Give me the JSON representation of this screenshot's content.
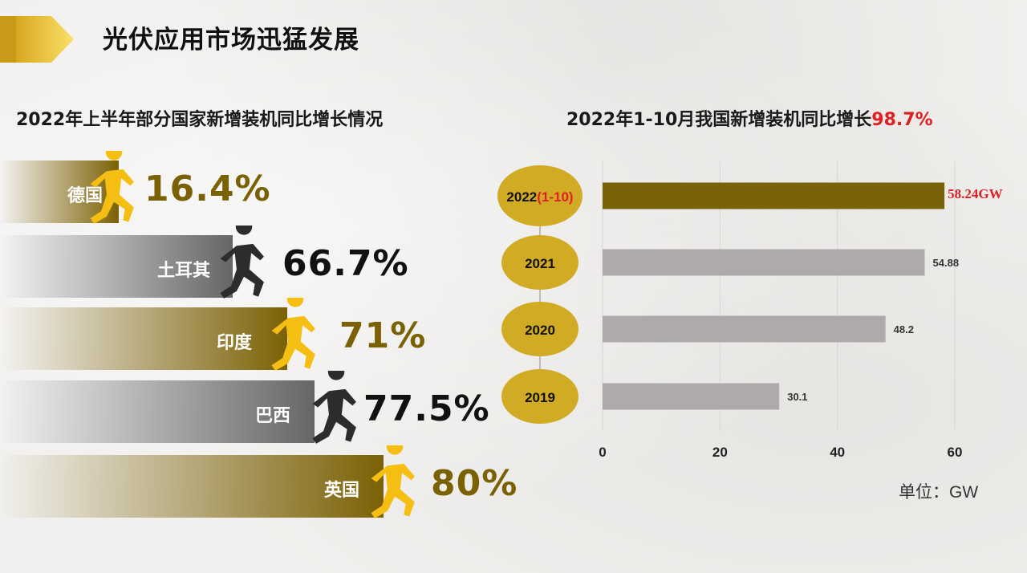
{
  "page": {
    "title": "光伏应用市场迅猛发展"
  },
  "left_panel": {
    "title": "2022年上半年部分国家新增装机同比增长情况",
    "items": [
      {
        "country": "德国",
        "growth": "16.4%",
        "style": "gold"
      },
      {
        "country": "土耳其",
        "growth": "66.7%",
        "style": "gray"
      },
      {
        "country": "印度",
        "growth": "71%",
        "style": "gold"
      },
      {
        "country": "巴西",
        "growth": "77.5%",
        "style": "gray"
      },
      {
        "country": "英国",
        "growth": "80%",
        "style": "gold"
      }
    ]
  },
  "right_panel": {
    "title_prefix": "2022年1-10月我国新增装机同比增长",
    "title_highlight": "98.7%",
    "unit": "单位：GW"
  },
  "colors": {
    "gold_bar": "#7b6106",
    "gray_bar": "#666666",
    "gold_ellipse": "#d2ab24",
    "bar_2022": "#7a620a",
    "bar_other": "#aeaaab",
    "highlight_red": "#e02020",
    "runner_yellow": "#f5be12",
    "runner_dark": "#2c2c2c"
  },
  "chart_data": {
    "type": "bar",
    "orientation": "horizontal",
    "categories": [
      "2022(1-10)",
      "2021",
      "2020",
      "2019"
    ],
    "values": [
      58.24,
      54.88,
      48.2,
      30.1
    ],
    "value_labels": [
      "58.24GW",
      "54.88",
      "48.2",
      "30.1"
    ],
    "x_ticks": [
      "0",
      "20",
      "40",
      "60"
    ],
    "xlim": [
      0,
      60
    ],
    "grid": true
  }
}
